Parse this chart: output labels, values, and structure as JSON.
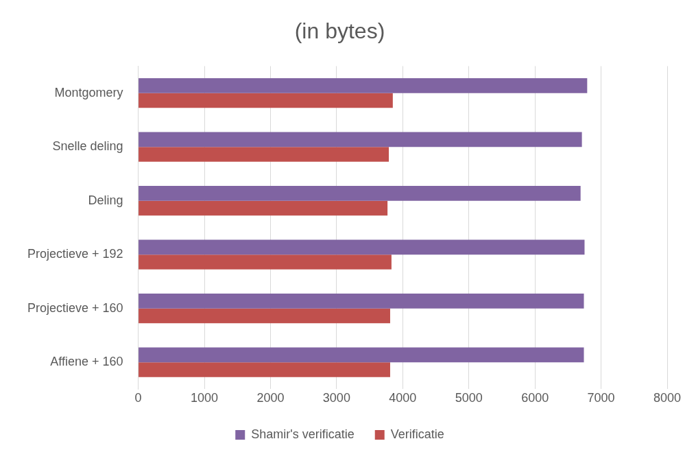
{
  "chart_data": {
    "type": "bar",
    "orientation": "horizontal",
    "title": "(in bytes)",
    "categories": [
      "Montgomery",
      "Snelle deling",
      "Deling",
      "Projectieve + 192",
      "Projectieve + 160",
      "Affiene + 160"
    ],
    "series": [
      {
        "name": "Shamir's verificatie",
        "color": "#8064a2",
        "values": [
          6790,
          6710,
          6690,
          6750,
          6740,
          6740
        ]
      },
      {
        "name": "Verificatie",
        "color": "#c0504d",
        "values": [
          3850,
          3790,
          3770,
          3830,
          3810,
          3810
        ]
      }
    ],
    "xlim": [
      0,
      8000
    ],
    "xticks": [
      0,
      1000,
      2000,
      3000,
      4000,
      5000,
      6000,
      7000,
      8000
    ],
    "grid": "x",
    "legend": "bottom"
  }
}
